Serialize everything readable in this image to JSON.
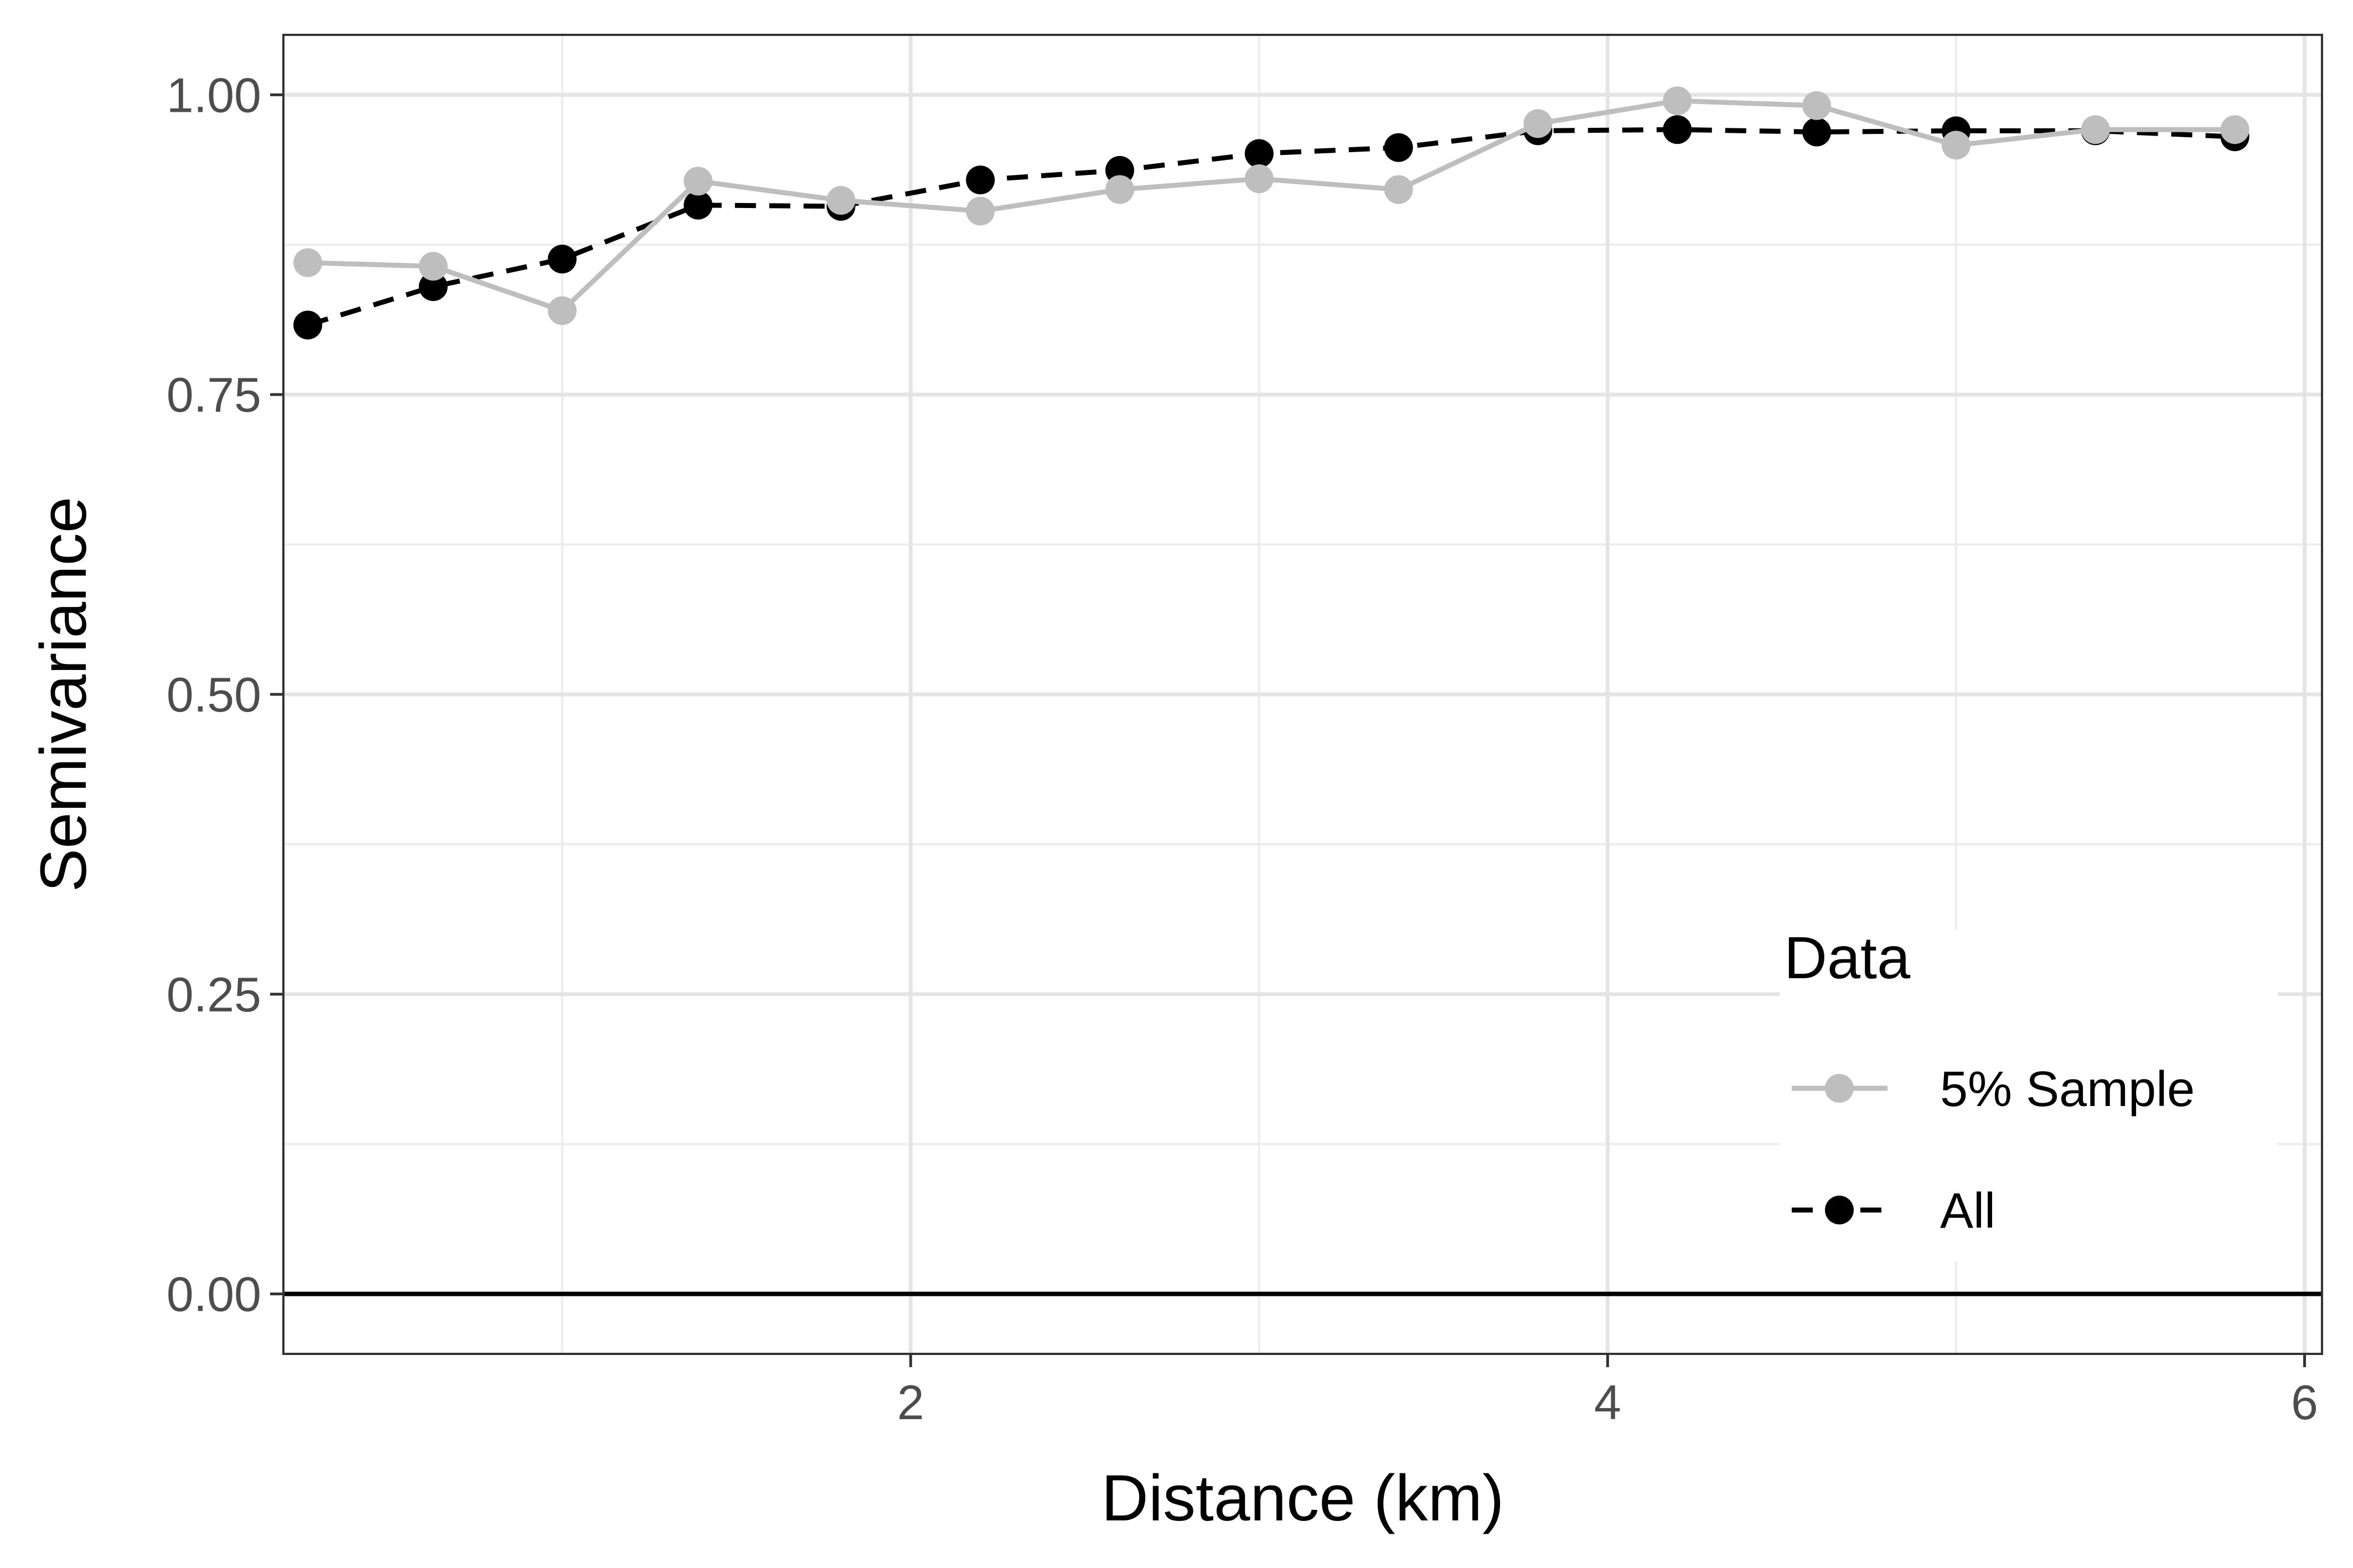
{
  "chart_data": {
    "type": "line",
    "title": "",
    "xlabel": "Distance (km)",
    "ylabel": "Semivariance",
    "xlim": [
      0.2,
      6.05
    ],
    "ylim": [
      -0.05,
      1.05
    ],
    "x_ticks": [
      2,
      4,
      6
    ],
    "x_tick_labels": [
      "2",
      "4",
      "6"
    ],
    "y_ticks": [
      0,
      0.25,
      0.5,
      0.75,
      1.0
    ],
    "y_tick_labels": [
      "0.00",
      "0.25",
      "0.50",
      "0.75",
      "1.00"
    ],
    "x_minor_ticks": [
      1,
      3,
      5
    ],
    "y_minor_ticks": [
      0.125,
      0.375,
      0.625,
      0.875
    ],
    "grid": true,
    "hline": 0,
    "legend": {
      "title": "Data",
      "placement": "bottom-right"
    },
    "series": [
      {
        "name": "5% Sample",
        "color": "#bebebe",
        "line_style": "solid",
        "x": [
          0.27,
          0.63,
          1.0,
          1.39,
          1.8,
          2.2,
          2.6,
          3.0,
          3.4,
          3.8,
          4.2,
          4.6,
          5.0,
          5.4,
          5.8
        ],
        "y": [
          0.86,
          0.857,
          0.82,
          0.928,
          0.912,
          0.903,
          0.921,
          0.93,
          0.921,
          0.976,
          0.995,
          0.991,
          0.958,
          0.971,
          0.971
        ]
      },
      {
        "name": "All",
        "color": "#000000",
        "line_style": "dashed",
        "x": [
          0.27,
          0.63,
          1.0,
          1.39,
          1.8,
          2.2,
          2.6,
          3.0,
          3.4,
          3.8,
          4.2,
          4.6,
          5.0,
          5.4,
          5.8
        ],
        "y": [
          0.808,
          0.84,
          0.863,
          0.908,
          0.907,
          0.929,
          0.937,
          0.951,
          0.956,
          0.97,
          0.971,
          0.969,
          0.97,
          0.97,
          0.965
        ]
      }
    ]
  }
}
